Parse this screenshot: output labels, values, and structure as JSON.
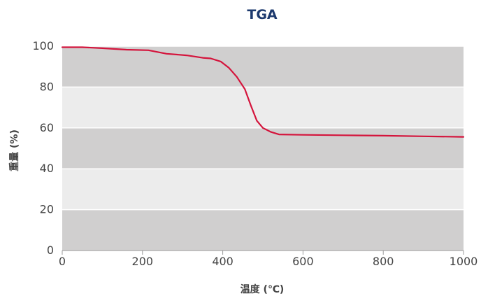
{
  "chart_data": {
    "type": "line",
    "title": "TGA",
    "xlabel": "温度 (℃)",
    "ylabel": "重量 (%)",
    "xlim": [
      0,
      1000
    ],
    "ylim": [
      0,
      100
    ],
    "x_ticks": [
      "0",
      "200",
      "400",
      "600",
      "800",
      "1000"
    ],
    "y_ticks": [
      "0",
      "20",
      "40",
      "60",
      "80",
      "100"
    ],
    "grid": true,
    "band_colors": [
      "#d0cfcf",
      "#ececec"
    ],
    "line_color": "#d4143c",
    "series": [
      {
        "x": [
          0,
          50,
          100,
          160,
          215,
          260,
          310,
          350,
          370,
          395,
          415,
          435,
          455,
          470,
          485,
          500,
          520,
          540,
          600,
          700,
          800,
          900,
          1000
        ],
        "y": [
          99.5,
          99.5,
          99,
          98.3,
          98,
          96.3,
          95.5,
          94.3,
          94,
          92.5,
          89.5,
          85,
          79,
          71,
          63.5,
          60,
          58,
          56.8,
          56.6,
          56.4,
          56.2,
          55.9,
          55.6
        ]
      }
    ]
  }
}
